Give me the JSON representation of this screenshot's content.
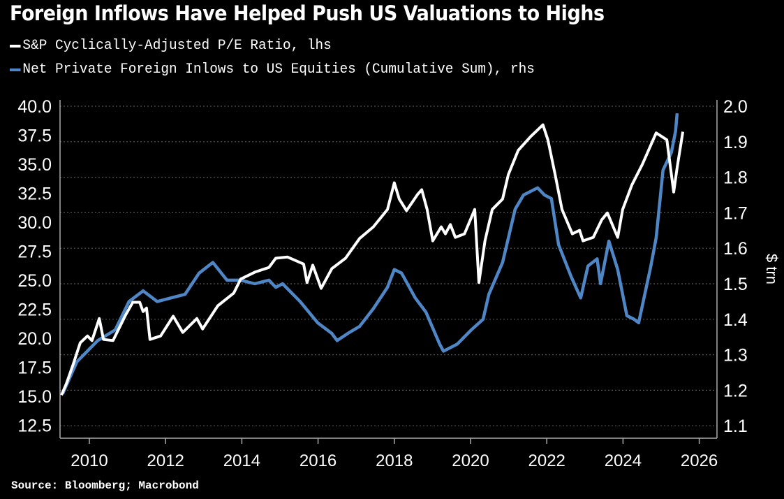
{
  "chart_data": {
    "type": "line",
    "title": "Foreign Inflows Have Helped Push US Valuations to Highs",
    "source": "Source: Bloomberg; Macrobond",
    "colors": {
      "background": "#000000",
      "pe": "#ffffff",
      "flows": "#4f86c6",
      "grid": "#555555"
    },
    "x_axis": {
      "ticks": [
        "2010",
        "2012",
        "2014",
        "2016",
        "2018",
        "2020",
        "2022",
        "2024",
        "2026"
      ],
      "range": [
        2009.0,
        2026.4
      ]
    },
    "y_left": {
      "label": "",
      "ticks": [
        "40.0",
        "37.5",
        "35.0",
        "32.5",
        "30.0",
        "27.5",
        "25.0",
        "22.5",
        "20.0",
        "17.5",
        "15.0",
        "12.5"
      ],
      "range": [
        11.5,
        40.5
      ]
    },
    "y_right": {
      "label": "$ trn",
      "ticks": [
        "2.0",
        "1.9",
        "1.8",
        "1.7",
        "1.6",
        "1.5",
        "1.4",
        "1.3",
        "1.2",
        "1.1"
      ],
      "range": [
        1.08,
        2.02
      ]
    },
    "legend_placement": "top-left",
    "series": [
      {
        "name": "S&P Cyclically-Adjusted P/E Ratio, lhs",
        "axis": "left",
        "points": [
          [
            2009.27,
            15.1
          ],
          [
            2009.4,
            16.1
          ],
          [
            2009.58,
            17.8
          ],
          [
            2009.76,
            19.6
          ],
          [
            2009.95,
            20.2
          ],
          [
            2010.07,
            19.8
          ],
          [
            2010.26,
            21.7
          ],
          [
            2010.37,
            19.9
          ],
          [
            2010.62,
            19.8
          ],
          [
            2010.95,
            22.0
          ],
          [
            2011.14,
            23.1
          ],
          [
            2011.32,
            23.1
          ],
          [
            2011.41,
            22.3
          ],
          [
            2011.5,
            22.6
          ],
          [
            2011.59,
            19.9
          ],
          [
            2011.87,
            20.2
          ],
          [
            2012.2,
            21.9
          ],
          [
            2012.45,
            20.5
          ],
          [
            2012.82,
            21.7
          ],
          [
            2012.97,
            20.8
          ],
          [
            2013.37,
            22.8
          ],
          [
            2013.79,
            23.9
          ],
          [
            2013.97,
            25.1
          ],
          [
            2014.34,
            25.7
          ],
          [
            2014.71,
            26.1
          ],
          [
            2014.89,
            26.9
          ],
          [
            2015.2,
            27.0
          ],
          [
            2015.62,
            26.4
          ],
          [
            2015.71,
            24.8
          ],
          [
            2015.86,
            26.3
          ],
          [
            2016.08,
            24.3
          ],
          [
            2016.36,
            26.0
          ],
          [
            2016.72,
            26.9
          ],
          [
            2017.09,
            28.6
          ],
          [
            2017.45,
            29.6
          ],
          [
            2017.82,
            31.1
          ],
          [
            2018.0,
            33.4
          ],
          [
            2018.13,
            32.0
          ],
          [
            2018.32,
            31.0
          ],
          [
            2018.61,
            32.4
          ],
          [
            2018.72,
            32.8
          ],
          [
            2018.86,
            31.1
          ],
          [
            2019.01,
            28.4
          ],
          [
            2019.23,
            29.6
          ],
          [
            2019.34,
            29.0
          ],
          [
            2019.47,
            29.8
          ],
          [
            2019.6,
            28.7
          ],
          [
            2019.84,
            29.0
          ],
          [
            2020.11,
            31.1
          ],
          [
            2020.22,
            24.8
          ],
          [
            2020.38,
            28.4
          ],
          [
            2020.57,
            31.1
          ],
          [
            2020.84,
            32.0
          ],
          [
            2020.99,
            34.1
          ],
          [
            2021.25,
            36.2
          ],
          [
            2021.58,
            37.4
          ],
          [
            2021.9,
            38.4
          ],
          [
            2022.03,
            37.1
          ],
          [
            2022.22,
            34.1
          ],
          [
            2022.4,
            31.1
          ],
          [
            2022.67,
            29.0
          ],
          [
            2022.86,
            29.3
          ],
          [
            2022.95,
            28.4
          ],
          [
            2023.22,
            28.7
          ],
          [
            2023.44,
            30.2
          ],
          [
            2023.59,
            30.8
          ],
          [
            2023.86,
            28.7
          ],
          [
            2023.99,
            31.1
          ],
          [
            2024.23,
            33.2
          ],
          [
            2024.51,
            35.0
          ],
          [
            2024.87,
            37.7
          ],
          [
            2025.15,
            37.1
          ],
          [
            2025.33,
            32.6
          ],
          [
            2025.42,
            34.7
          ],
          [
            2025.57,
            37.8
          ]
        ]
      },
      {
        "name": "Net Private Foreign Inlows to US Equities (Cumulative Sum), rhs",
        "axis": "right",
        "points": [
          [
            2009.3,
            1.19
          ],
          [
            2009.67,
            1.28
          ],
          [
            2010.22,
            1.34
          ],
          [
            2010.68,
            1.37
          ],
          [
            2011.04,
            1.45
          ],
          [
            2011.41,
            1.48
          ],
          [
            2011.78,
            1.45
          ],
          [
            2012.14,
            1.46
          ],
          [
            2012.51,
            1.47
          ],
          [
            2012.88,
            1.53
          ],
          [
            2013.24,
            1.56
          ],
          [
            2013.61,
            1.51
          ],
          [
            2013.97,
            1.51
          ],
          [
            2014.34,
            1.5
          ],
          [
            2014.71,
            1.51
          ],
          [
            2014.89,
            1.49
          ],
          [
            2015.07,
            1.5
          ],
          [
            2015.53,
            1.45
          ],
          [
            2015.99,
            1.39
          ],
          [
            2016.36,
            1.36
          ],
          [
            2016.5,
            1.34
          ],
          [
            2016.78,
            1.36
          ],
          [
            2017.09,
            1.38
          ],
          [
            2017.45,
            1.43
          ],
          [
            2017.82,
            1.49
          ],
          [
            2018.0,
            1.54
          ],
          [
            2018.19,
            1.53
          ],
          [
            2018.55,
            1.46
          ],
          [
            2018.83,
            1.42
          ],
          [
            2019.19,
            1.33
          ],
          [
            2019.29,
            1.31
          ],
          [
            2019.65,
            1.33
          ],
          [
            2020.02,
            1.37
          ],
          [
            2020.33,
            1.4
          ],
          [
            2020.48,
            1.47
          ],
          [
            2020.84,
            1.56
          ],
          [
            2021.17,
            1.71
          ],
          [
            2021.39,
            1.75
          ],
          [
            2021.76,
            1.77
          ],
          [
            2021.94,
            1.75
          ],
          [
            2022.12,
            1.74
          ],
          [
            2022.31,
            1.61
          ],
          [
            2022.64,
            1.52
          ],
          [
            2022.89,
            1.46
          ],
          [
            2023.08,
            1.55
          ],
          [
            2023.32,
            1.57
          ],
          [
            2023.41,
            1.5
          ],
          [
            2023.63,
            1.62
          ],
          [
            2023.86,
            1.54
          ],
          [
            2024.1,
            1.41
          ],
          [
            2024.29,
            1.4
          ],
          [
            2024.41,
            1.39
          ],
          [
            2024.73,
            1.55
          ],
          [
            2024.87,
            1.63
          ],
          [
            2025.05,
            1.82
          ],
          [
            2025.27,
            1.87
          ],
          [
            2025.38,
            1.93
          ],
          [
            2025.42,
            1.98
          ]
        ]
      }
    ]
  }
}
